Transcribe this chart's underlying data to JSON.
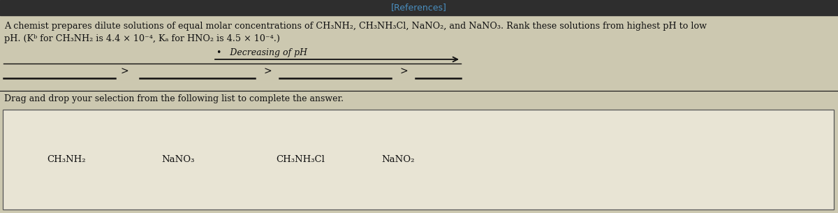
{
  "references_text": "[References]",
  "line1": "A chemist prepares dilute solutions of equal molar concentrations of CH₃NH₂, CH₃NH₃Cl, NaNO₂, and NaNO₃. Rank these solutions from highest pH to low",
  "line2": "pH. (Kᵇ for CH₃NH₂ is 4.4 × 10⁻⁴, Kₐ for HNO₂ is 4.5 × 10⁻⁴.)",
  "decreasing_label": "Decreasing of pH",
  "drag_text": "Drag and drop your selection from the following list to complete the answer.",
  "choices": [
    "CH₃NH₂",
    "NaNO₃",
    "CH₃NH₃Cl",
    "NaNO₂"
  ],
  "bg_top": "#2e2e2e",
  "bg_main": "#ccc8b0",
  "bg_bottom_strip": "#d4d0bc",
  "ref_color": "#4a8fc0",
  "text_color": "#111111",
  "choice_box_bg": "#e8e4d4",
  "choice_box_border": "#555555",
  "arrow_color": "#111111",
  "line_color": "#111111"
}
